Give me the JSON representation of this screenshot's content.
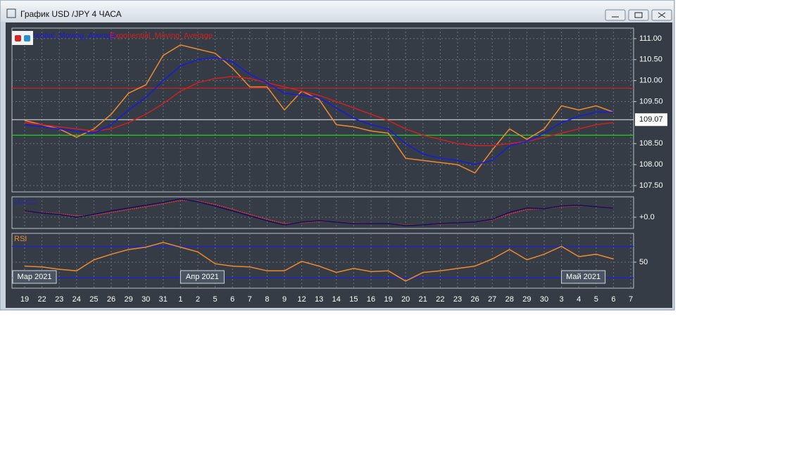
{
  "window": {
    "title": "График USD /JPY  4 ЧАСА"
  },
  "x_axis": {
    "categories": [
      "19",
      "22",
      "23",
      "24",
      "25",
      "26",
      "29",
      "30",
      "31",
      "1",
      "2",
      "5",
      "6",
      "7",
      "8",
      "9",
      "12",
      "13",
      "14",
      "15",
      "16",
      "19",
      "20",
      "21",
      "22",
      "23",
      "26",
      "27",
      "28",
      "29",
      "30",
      "3",
      "4",
      "5",
      "6",
      "7"
    ],
    "month_labels": [
      "Мар 2021",
      "Апр 2021",
      "Май 2021"
    ]
  },
  "chart_data": [
    {
      "type": "line",
      "grid": true,
      "ylim": [
        107.35,
        111.25
      ],
      "yticks": [
        {
          "value": 107.5,
          "label": "107.50"
        },
        {
          "value": 108,
          "label": "108.00"
        },
        {
          "value": 108.5,
          "label": "108.50"
        },
        {
          "value": 109.5,
          "label": "109.50"
        },
        {
          "value": 110,
          "label": "110.00"
        },
        {
          "value": 110.5,
          "label": "110.50"
        },
        {
          "value": 111,
          "label": "111.00"
        }
      ],
      "last_price": {
        "value": 109.07,
        "label": "109.07"
      },
      "levels": [
        {
          "value": 109.82,
          "color": "#d02020"
        },
        {
          "value": 108.7,
          "color": "#20d020"
        }
      ],
      "series": [
        {
          "name": "Exponential_Moving_Average",
          "color": "#1a1ae0",
          "values": [
            108.95,
            108.9,
            108.85,
            108.8,
            108.75,
            108.95,
            109.3,
            109.6,
            110.0,
            110.35,
            110.5,
            110.55,
            110.45,
            110.15,
            109.95,
            109.7,
            109.65,
            109.6,
            109.35,
            109.1,
            108.95,
            108.85,
            108.5,
            108.25,
            108.15,
            108.1,
            108.0,
            108.1,
            108.45,
            108.55,
            108.75,
            109.0,
            109.15,
            109.25,
            109.25,
            null
          ]
        },
        {
          "name": "Exponential_Moving_Average",
          "color": "#d02020",
          "values": [
            109.0,
            108.95,
            108.9,
            108.85,
            108.8,
            108.85,
            109.0,
            109.2,
            109.45,
            109.75,
            109.95,
            110.05,
            110.1,
            110.05,
            109.95,
            109.85,
            109.75,
            109.65,
            109.5,
            109.35,
            109.2,
            109.05,
            108.85,
            108.7,
            108.6,
            108.5,
            108.45,
            108.45,
            108.5,
            108.55,
            108.65,
            108.75,
            108.85,
            108.95,
            109.0,
            null
          ]
        },
        {
          "color": "#f08a30",
          "values": [
            109.05,
            108.95,
            108.85,
            108.65,
            108.85,
            109.2,
            109.7,
            109.9,
            110.6,
            110.85,
            110.75,
            110.65,
            110.3,
            109.85,
            109.85,
            109.3,
            109.75,
            109.55,
            108.95,
            108.9,
            108.8,
            108.75,
            108.15,
            108.1,
            108.05,
            108.0,
            107.8,
            108.35,
            108.85,
            108.6,
            108.85,
            109.4,
            109.3,
            109.4,
            109.25,
            null
          ]
        }
      ]
    },
    {
      "type": "line",
      "title": "MACD",
      "grid": true,
      "ylim": [
        -0.24,
        0.435
      ],
      "yticks": [
        {
          "value": 0,
          "label": "+0.0"
        }
      ],
      "series": [
        {
          "color": "#101060",
          "values": [
            0.135,
            0.09,
            0.06,
            0,
            0.06,
            0.135,
            0.195,
            0.255,
            0.315,
            0.39,
            0.33,
            0.24,
            0.135,
            0.03,
            -0.075,
            -0.165,
            -0.105,
            -0.075,
            -0.105,
            -0.135,
            -0.135,
            -0.135,
            -0.18,
            -0.165,
            -0.135,
            -0.12,
            -0.105,
            -0.045,
            0.105,
            0.195,
            0.18,
            0.24,
            0.255,
            0.225,
            0.195,
            null
          ]
        },
        {
          "color": "#e03030",
          "values": [
            0.12,
            0.1,
            0.075,
            0.03,
            0.04,
            0.1,
            0.165,
            0.225,
            0.29,
            0.36,
            0.345,
            0.27,
            0.17,
            0.06,
            -0.045,
            -0.135,
            -0.12,
            -0.09,
            -0.1,
            -0.125,
            -0.13,
            -0.135,
            -0.165,
            -0.165,
            -0.145,
            -0.125,
            -0.11,
            -0.06,
            0.07,
            0.165,
            0.18,
            0.225,
            0.245,
            0.23,
            0.2,
            null
          ]
        }
      ]
    },
    {
      "type": "line",
      "title": "RSI",
      "grid": true,
      "ylim": [
        17,
        86.5
      ],
      "yticks": [
        50
      ],
      "levels": [
        {
          "value": 70,
          "color": "#2020e0"
        },
        {
          "value": 30,
          "color": "#2020e0"
        }
      ],
      "series": [
        {
          "color": "#f08a30",
          "values": [
            45,
            44,
            41,
            39,
            53,
            60,
            66,
            69,
            75,
            69,
            63,
            48,
            45,
            44,
            39,
            39,
            51,
            45,
            37,
            42,
            38,
            39,
            26,
            37,
            39,
            42,
            45,
            54,
            66,
            53,
            60,
            70,
            57,
            60,
            54,
            null
          ]
        }
      ]
    }
  ]
}
